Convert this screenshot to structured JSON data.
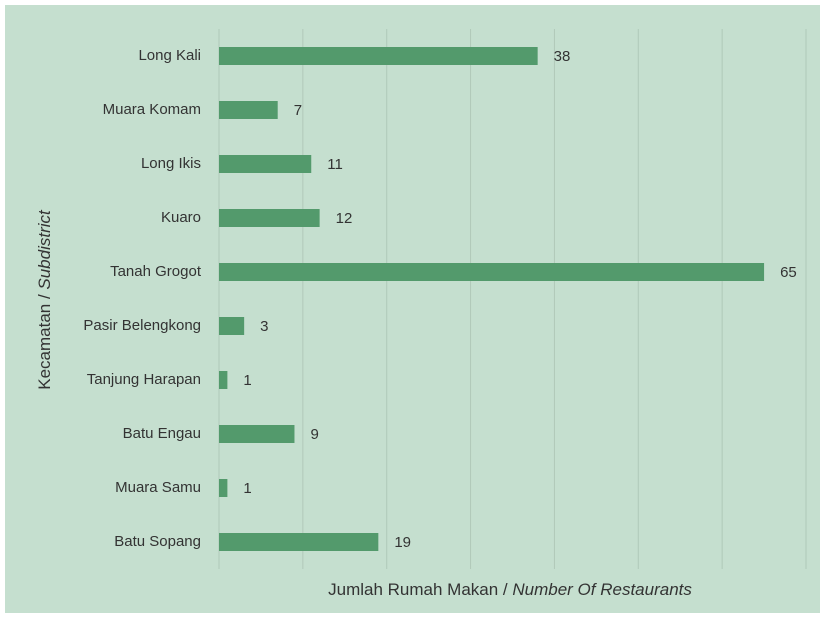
{
  "chart_data": {
    "type": "bar",
    "orientation": "horizontal",
    "categories": [
      "Long Kali",
      "Muara Komam",
      "Long Ikis",
      "Kuaro",
      "Tanah Grogot",
      "Pasir Belengkong",
      "Tanjung Harapan",
      "Batu Engau",
      "Muara Samu",
      "Batu Sopang"
    ],
    "values": [
      38,
      7,
      11,
      12,
      65,
      3,
      1,
      9,
      1,
      19
    ],
    "color": "#539a6c",
    "xlim": [
      0,
      70
    ],
    "xticks": [
      0,
      10,
      20,
      30,
      40,
      50,
      60,
      70
    ],
    "grid": true,
    "xlabel": [
      "Jumlah Rumah Makan / ",
      "Number Of Restaurants"
    ],
    "ylabel": [
      "Kecamatan / ",
      "Subdistrict"
    ]
  }
}
